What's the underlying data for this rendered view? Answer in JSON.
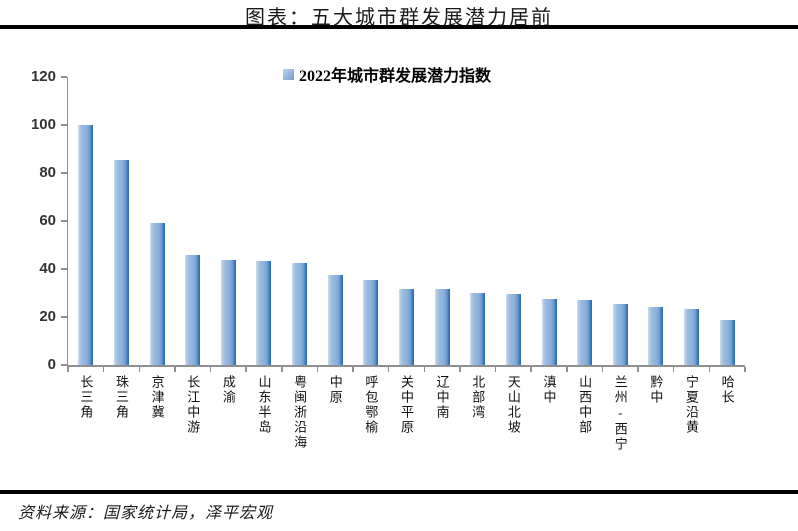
{
  "header": {
    "title": "图表：五大城市群发展潜力居前"
  },
  "footer": {
    "source": "资料来源：国家统计局，泽平宏观"
  },
  "chart_data": {
    "type": "bar",
    "title": "图表：五大城市群发展潜力居前",
    "legend": "2022年城市群发展潜力指数",
    "legend_position": "top-center",
    "categories": [
      "长三角",
      "珠三角",
      "京津冀",
      "长江中游",
      "成渝",
      "山东半岛",
      "粤闽浙沿海",
      "中原",
      "呼包鄂榆",
      "关中平原",
      "辽中南",
      "北部湾",
      "天山北坡",
      "滇中",
      "山西中部",
      "兰州-西宁",
      "黔中",
      "宁夏沿黄",
      "哈长"
    ],
    "values": [
      100,
      85.5,
      59.3,
      46.0,
      43.9,
      43.2,
      42.3,
      37.4,
      35.6,
      31.7,
      31.6,
      30.2,
      29.7,
      27.5,
      27.0,
      25.5,
      24.0,
      23.2,
      18.7
    ],
    "xlabel": "",
    "ylabel": "",
    "ylim": [
      0,
      120
    ],
    "y_ticks": [
      0,
      20,
      40,
      60,
      80,
      100,
      120
    ],
    "grid": false,
    "colors": {
      "bar_main": "#8db2da",
      "bar_light": "#d4e2f1",
      "bar_dark": "#2569b1",
      "axis": "#8f8f8f",
      "title_text": "#1a1a1a",
      "rule": "#000000"
    }
  }
}
